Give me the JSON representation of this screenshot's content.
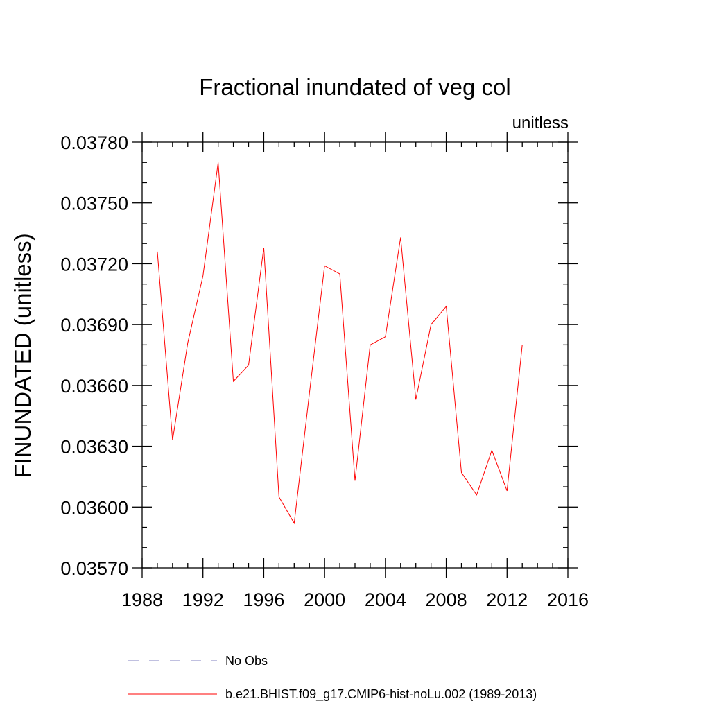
{
  "chart_data": {
    "type": "line",
    "title": "Fractional inundated of veg col",
    "units_label": "unitless",
    "xlabel": "",
    "ylabel": "FINUNDATED  (unitless)",
    "xlim": [
      1988,
      2016
    ],
    "ylim": [
      0.0357,
      0.0378
    ],
    "x_ticks": [
      1988,
      1992,
      1996,
      2000,
      2004,
      2008,
      2012,
      2016
    ],
    "x_tick_labels": [
      "1988",
      "1992",
      "1996",
      "2000",
      "2004",
      "2008",
      "2012",
      "2016"
    ],
    "x_minor_step": 1,
    "y_ticks": [
      0.0357,
      0.036,
      0.0363,
      0.0366,
      0.0369,
      0.0372,
      0.0375,
      0.0378
    ],
    "y_tick_labels": [
      "0.03570",
      "0.03600",
      "0.03630",
      "0.03660",
      "0.03690",
      "0.03720",
      "0.03750",
      "0.03780"
    ],
    "y_minor_step": 0.0001,
    "grid": false,
    "legend_position": "bottom",
    "series": [
      {
        "name": "No Obs",
        "color": "#8080c0",
        "style": "dashed",
        "x": [],
        "values": []
      },
      {
        "name": "b.e21.BHIST.f09_g17.CMIP6-hist-noLu.002 (1989-2013)",
        "color": "#ff0000",
        "style": "solid",
        "x": [
          1989,
          1990,
          1991,
          1992,
          1993,
          1994,
          1995,
          1996,
          1997,
          1998,
          1999,
          2000,
          2001,
          2002,
          2003,
          2004,
          2005,
          2006,
          2007,
          2008,
          2009,
          2010,
          2011,
          2012,
          2013
        ],
        "values": [
          0.03726,
          0.03633,
          0.03681,
          0.03714,
          0.0377,
          0.03662,
          0.0367,
          0.03728,
          0.03605,
          0.03592,
          0.03656,
          0.03719,
          0.03715,
          0.03613,
          0.0368,
          0.03684,
          0.03733,
          0.03653,
          0.0369,
          0.03699,
          0.03617,
          0.03606,
          0.03628,
          0.03608,
          0.0368
        ]
      }
    ]
  }
}
